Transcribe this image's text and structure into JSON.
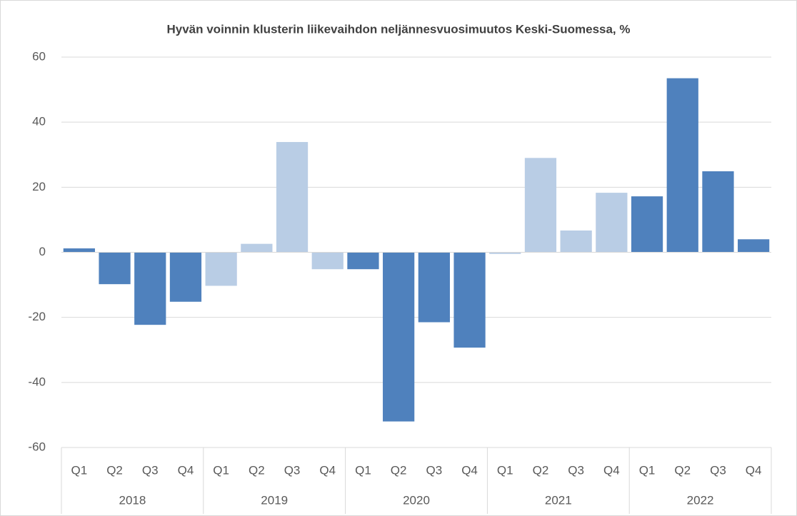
{
  "chart_data": {
    "type": "bar",
    "title": "Hyvän voinnin klusterin liikevaihdon neljännesvuosimuutos Keski-Suomessa, %",
    "categories": [
      "Q1",
      "Q2",
      "Q3",
      "Q4",
      "Q1",
      "Q2",
      "Q3",
      "Q4",
      "Q1",
      "Q2",
      "Q3",
      "Q4",
      "Q1",
      "Q2",
      "Q3",
      "Q4",
      "Q1",
      "Q2",
      "Q3",
      "Q4"
    ],
    "groups": [
      "2018",
      "2019",
      "2020",
      "2021",
      "2022"
    ],
    "group_colors": [
      "#4f81bd",
      "#b9cde5",
      "#4f81bd",
      "#b9cde5",
      "#4f81bd"
    ],
    "values": [
      1.2,
      -9.8,
      -22.3,
      -15.2,
      -10.3,
      2.6,
      33.9,
      -5.2,
      -5.2,
      -52,
      -21.5,
      -29.3,
      -0.5,
      29,
      6.7,
      18.3,
      17.2,
      53.5,
      24.9,
      4.0
    ],
    "ylim": [
      -60,
      60
    ],
    "yticks": [
      -60,
      -40,
      -20,
      0,
      20,
      40,
      60
    ],
    "grid": true
  }
}
